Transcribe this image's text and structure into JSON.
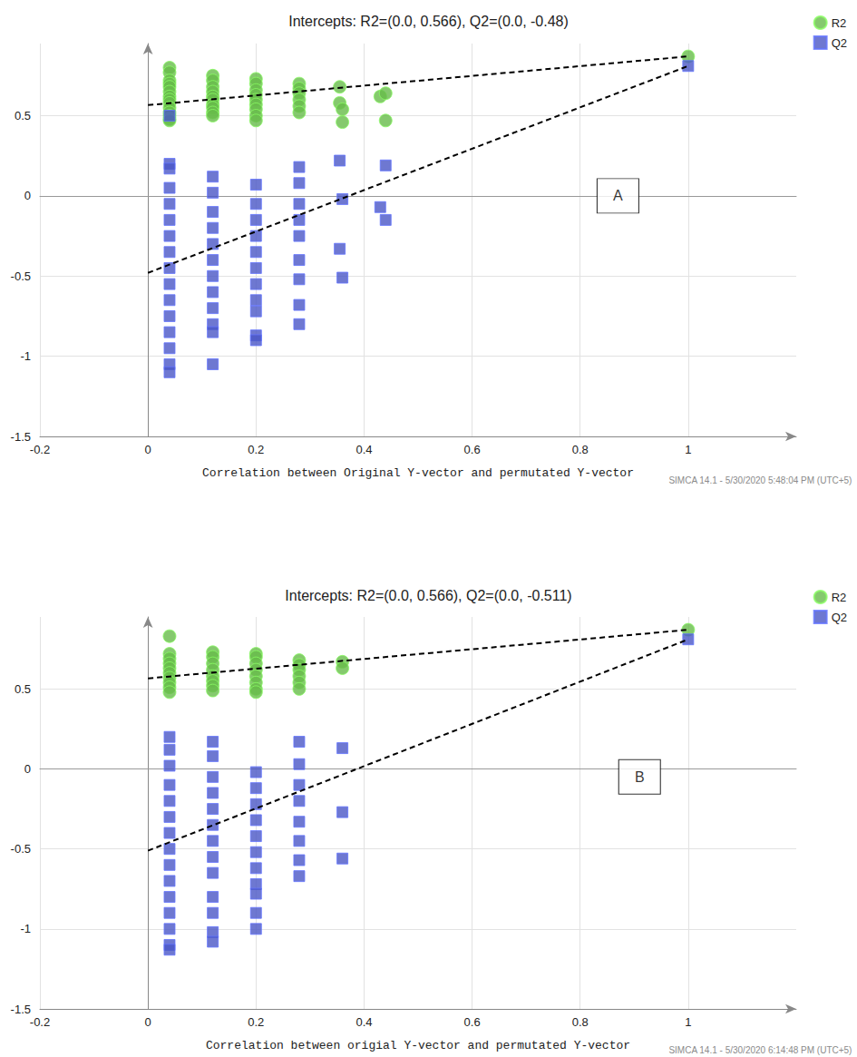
{
  "chart_data": [
    {
      "type": "scatter",
      "title": "Intercepts: R2=(0.0, 0.566), Q2=(0.0, -0.48)",
      "x_label": "Correlation between Original Y-vector and permutated Y-vector",
      "footer": "SIMCA 14.1 - 5/30/2020 5:48:04 PM (UTC+5)",
      "annotations": [
        {
          "text": "A",
          "x": 0.87,
          "y": 0.0
        }
      ],
      "xlim": [
        -0.2,
        1.2
      ],
      "xticks": [
        -0.2,
        0,
        0.2,
        0.4,
        0.6,
        0.8,
        1
      ],
      "ylim": [
        -1.5,
        0.95
      ],
      "yticks": [
        -1.5,
        -1,
        -0.5,
        0,
        0.5
      ],
      "grid": true,
      "legend": "top-right",
      "series": [
        {
          "name": "R2",
          "type": "scatter",
          "marker": "circle",
          "color": "#66bb4a",
          "x": [
            0.04,
            0.04,
            0.04,
            0.04,
            0.04,
            0.04,
            0.04,
            0.04,
            0.04,
            0.04,
            0.04,
            0.04,
            0.04,
            0.04,
            0.12,
            0.12,
            0.12,
            0.12,
            0.12,
            0.12,
            0.12,
            0.12,
            0.12,
            0.12,
            0.2,
            0.2,
            0.2,
            0.2,
            0.2,
            0.2,
            0.2,
            0.2,
            0.2,
            0.28,
            0.28,
            0.28,
            0.28,
            0.28,
            0.28,
            0.355,
            0.355,
            0.36,
            0.36,
            0.43,
            0.44,
            0.44,
            1
          ],
          "y": [
            0.8,
            0.77,
            0.72,
            0.7,
            0.68,
            0.65,
            0.62,
            0.6,
            0.58,
            0.55,
            0.52,
            0.5,
            0.48,
            0.47,
            0.75,
            0.72,
            0.68,
            0.65,
            0.62,
            0.6,
            0.57,
            0.55,
            0.52,
            0.5,
            0.73,
            0.7,
            0.66,
            0.63,
            0.6,
            0.57,
            0.54,
            0.5,
            0.47,
            0.7,
            0.67,
            0.64,
            0.6,
            0.56,
            0.52,
            0.68,
            0.58,
            0.54,
            0.46,
            0.62,
            0.64,
            0.47,
            0.87
          ]
        },
        {
          "name": "Q2",
          "type": "scatter",
          "marker": "square",
          "color": "#4a56c6",
          "x": [
            0.04,
            0.04,
            0.04,
            0.04,
            0.04,
            0.04,
            0.04,
            0.04,
            0.04,
            0.04,
            0.04,
            0.04,
            0.04,
            0.04,
            0.04,
            0.04,
            0.12,
            0.12,
            0.12,
            0.12,
            0.12,
            0.12,
            0.12,
            0.12,
            0.12,
            0.12,
            0.12,
            0.12,
            0.2,
            0.2,
            0.2,
            0.2,
            0.2,
            0.2,
            0.2,
            0.2,
            0.2,
            0.2,
            0.2,
            0.28,
            0.28,
            0.28,
            0.28,
            0.28,
            0.28,
            0.28,
            0.28,
            0.28,
            0.355,
            0.355,
            0.36,
            0.36,
            0.43,
            0.44,
            0.44,
            1
          ],
          "y": [
            0.5,
            0.2,
            0.17,
            0.05,
            -0.05,
            -0.15,
            -0.25,
            -0.35,
            -0.45,
            -0.55,
            -0.65,
            -0.75,
            -0.85,
            -0.95,
            -1.05,
            -1.1,
            0.12,
            0.02,
            -0.1,
            -0.2,
            -0.3,
            -0.4,
            -0.5,
            -0.6,
            -0.7,
            -0.8,
            -0.85,
            -1.05,
            0.07,
            -0.05,
            -0.15,
            -0.25,
            -0.35,
            -0.45,
            -0.55,
            -0.65,
            -0.72,
            -0.87,
            -0.9,
            0.18,
            0.08,
            -0.05,
            -0.15,
            -0.25,
            -0.4,
            -0.52,
            -0.68,
            -0.8,
            0.22,
            -0.33,
            -0.02,
            -0.51,
            -0.07,
            0.19,
            -0.15,
            0.81
          ]
        },
        {
          "type": "line",
          "line_style": "dashed",
          "color": "#000000",
          "x": [
            0,
            1
          ],
          "y": [
            0.566,
            0.87
          ]
        },
        {
          "type": "line",
          "line_style": "dashed",
          "color": "#000000",
          "x": [
            0,
            1
          ],
          "y": [
            -0.48,
            0.81
          ]
        }
      ]
    },
    {
      "type": "scatter",
      "title": "Intercepts: R2=(0.0, 0.566), Q2=(0.0, -0.511)",
      "x_label": "Correlation between origial Y-vector and permutated Y-vector",
      "footer": "SIMCA 14.1 - 5/30/2020 6:14:48 PM (UTC+5)",
      "annotations": [
        {
          "text": "B",
          "x": 0.91,
          "y": -0.05
        }
      ],
      "xlim": [
        -0.2,
        1.2
      ],
      "xticks": [
        -0.2,
        0,
        0.2,
        0.4,
        0.6,
        0.8,
        1
      ],
      "ylim": [
        -1.5,
        0.95
      ],
      "yticks": [
        -1.5,
        -1,
        -0.5,
        0,
        0.5
      ],
      "grid": true,
      "legend": "top-right",
      "series": [
        {
          "name": "R2",
          "type": "scatter",
          "marker": "circle",
          "color": "#66bb4a",
          "x": [
            0.04,
            0.04,
            0.04,
            0.04,
            0.04,
            0.04,
            0.04,
            0.04,
            0.04,
            0.04,
            0.12,
            0.12,
            0.12,
            0.12,
            0.12,
            0.12,
            0.12,
            0.12,
            0.2,
            0.2,
            0.2,
            0.2,
            0.2,
            0.2,
            0.2,
            0.2,
            0.28,
            0.28,
            0.28,
            0.28,
            0.28,
            0.28,
            0.36,
            0.36,
            1
          ],
          "y": [
            0.83,
            0.72,
            0.69,
            0.66,
            0.63,
            0.6,
            0.57,
            0.54,
            0.51,
            0.48,
            0.73,
            0.7,
            0.66,
            0.62,
            0.58,
            0.55,
            0.52,
            0.49,
            0.72,
            0.7,
            0.66,
            0.62,
            0.58,
            0.54,
            0.5,
            0.48,
            0.68,
            0.65,
            0.62,
            0.58,
            0.54,
            0.5,
            0.67,
            0.63,
            0.87
          ]
        },
        {
          "name": "Q2",
          "type": "scatter",
          "marker": "square",
          "color": "#4a56c6",
          "x": [
            0.04,
            0.04,
            0.04,
            0.04,
            0.04,
            0.04,
            0.04,
            0.04,
            0.04,
            0.04,
            0.04,
            0.04,
            0.04,
            0.04,
            0.04,
            0.12,
            0.12,
            0.12,
            0.12,
            0.12,
            0.12,
            0.12,
            0.12,
            0.12,
            0.12,
            0.12,
            0.12,
            0.12,
            0.2,
            0.2,
            0.2,
            0.2,
            0.2,
            0.2,
            0.2,
            0.2,
            0.2,
            0.2,
            0.2,
            0.28,
            0.28,
            0.28,
            0.28,
            0.28,
            0.28,
            0.28,
            0.28,
            0.36,
            0.36,
            0.36,
            1
          ],
          "y": [
            0.2,
            0.12,
            0.02,
            -0.1,
            -0.2,
            -0.3,
            -0.4,
            -0.5,
            -0.6,
            -0.7,
            -0.8,
            -0.9,
            -1.0,
            -1.1,
            -1.13,
            0.17,
            0.08,
            -0.05,
            -0.15,
            -0.25,
            -0.35,
            -0.45,
            -0.55,
            -0.65,
            -0.8,
            -0.9,
            -1.02,
            -1.08,
            -0.02,
            -0.12,
            -0.22,
            -0.32,
            -0.42,
            -0.52,
            -0.62,
            -0.72,
            -0.78,
            -0.9,
            -1.0,
            0.17,
            0.03,
            -0.1,
            -0.2,
            -0.33,
            -0.45,
            -0.57,
            -0.67,
            0.13,
            -0.27,
            -0.56,
            0.81
          ]
        },
        {
          "type": "line",
          "line_style": "dashed",
          "color": "#000000",
          "x": [
            0,
            1
          ],
          "y": [
            0.566,
            0.87
          ]
        },
        {
          "type": "line",
          "line_style": "dashed",
          "color": "#000000",
          "x": [
            0,
            1
          ],
          "y": [
            -0.511,
            0.81
          ]
        }
      ]
    }
  ]
}
